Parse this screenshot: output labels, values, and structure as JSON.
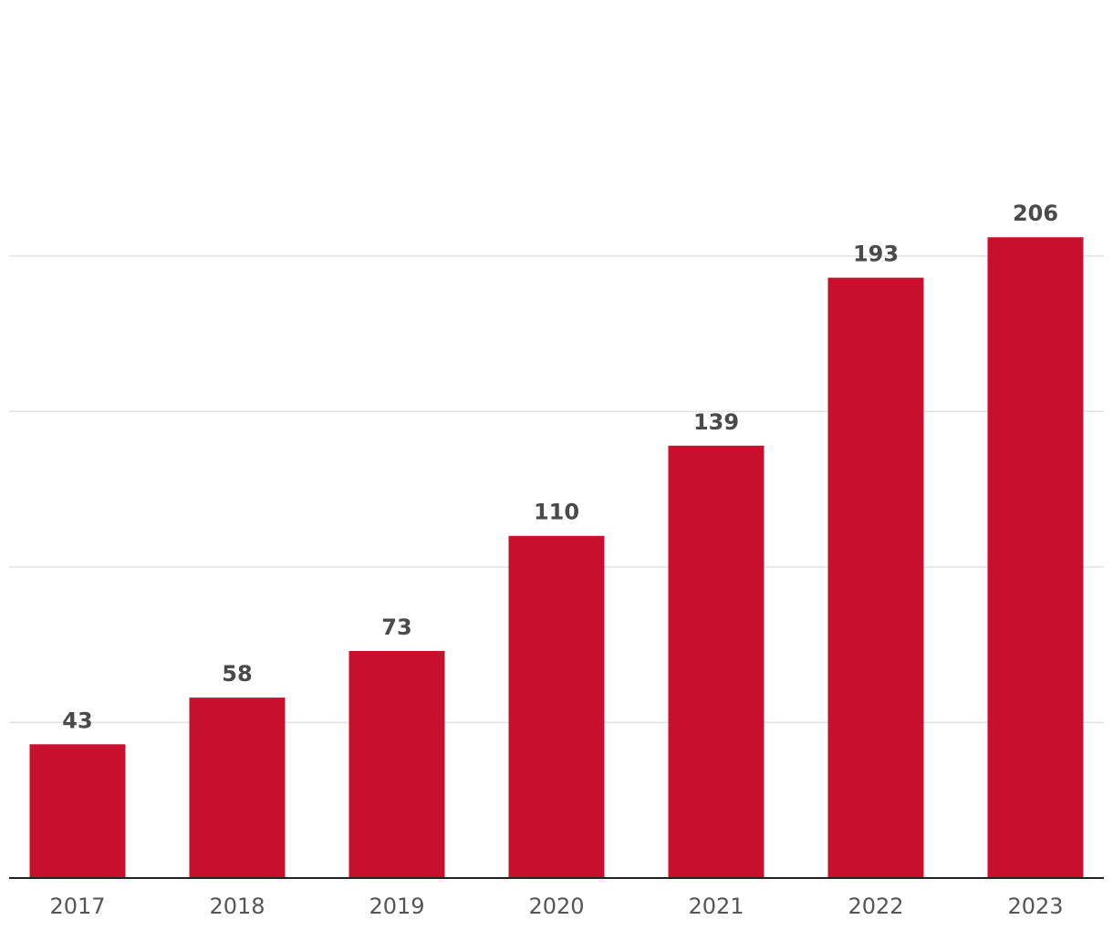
{
  "chart_data": {
    "type": "bar",
    "title": "",
    "xlabel": "",
    "ylabel": "",
    "categories": [
      "2017",
      "2018",
      "2019",
      "2020",
      "2021",
      "2022",
      "2023"
    ],
    "values": [
      43,
      58,
      73,
      110,
      139,
      193,
      206
    ],
    "ylim": [
      0,
      200
    ],
    "gridlines": [
      50,
      100,
      150,
      200
    ],
    "grid": true,
    "legend": "none",
    "bar_color": "#c8102e",
    "gridline_color": "#e3e3e3",
    "axis_color": "#222222",
    "label_color": "#4a4a4a"
  }
}
